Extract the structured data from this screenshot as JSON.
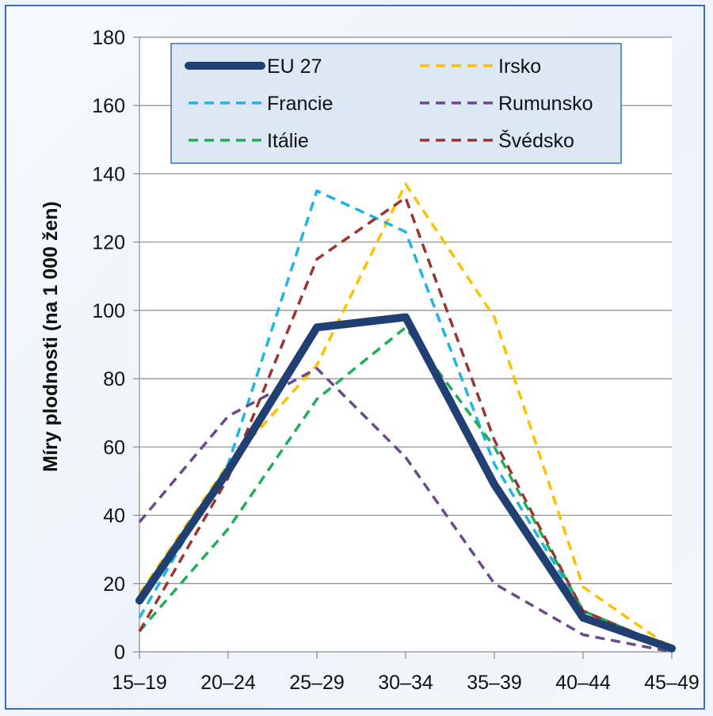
{
  "chart_data": {
    "type": "line",
    "title": "",
    "xlabel": "",
    "ylabel": "Míry plodnosti  (na 1 000 žen)",
    "categories": [
      "15–19",
      "20–24",
      "25–29",
      "30–34",
      "35–39",
      "40–44",
      "45–49"
    ],
    "ylim": [
      0,
      180
    ],
    "yticks": [
      0,
      20,
      40,
      60,
      80,
      100,
      120,
      140,
      160,
      180
    ],
    "grid": "horizontal",
    "legend_position": "top, inside plot",
    "series": [
      {
        "name": "EU 27",
        "values": [
          15,
          53,
          95,
          98,
          49,
          10,
          1
        ],
        "color": "#203f72",
        "style": "solid"
      },
      {
        "name": "Irsko",
        "values": [
          17,
          55,
          84,
          137,
          98,
          19,
          1
        ],
        "color": "#ffc000",
        "style": "dashed"
      },
      {
        "name": "Francie",
        "values": [
          10,
          55,
          135,
          123,
          55,
          12,
          1
        ],
        "color": "#1fb4e8",
        "style": "dashed"
      },
      {
        "name": "Rumunsko",
        "values": [
          38,
          69,
          83,
          57,
          20,
          5,
          0
        ],
        "color": "#6b4a8c",
        "style": "dashed"
      },
      {
        "name": "Itálie",
        "values": [
          6,
          36,
          74,
          95,
          60,
          12,
          1
        ],
        "color": "#1fae58",
        "style": "dashed"
      },
      {
        "name": "Švédsko",
        "values": [
          6,
          51,
          115,
          133,
          62,
          12,
          1
        ],
        "color": "#9c3430",
        "style": "dashed"
      }
    ],
    "legend_order": [
      "EU 27",
      "Irsko",
      "Francie",
      "Rumunsko",
      "Itálie",
      "Švédsko"
    ]
  }
}
